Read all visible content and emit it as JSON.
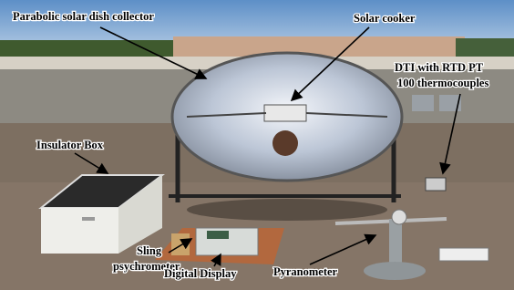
{
  "annotations": [
    {
      "lines": [
        "Parabolic solar dish collector"
      ]
    },
    {
      "lines": [
        "Solar cooker"
      ]
    },
    {
      "lines": [
        "DTI with RTD PT",
        "100 thermocouples"
      ]
    },
    {
      "lines": [
        "Insulator Box"
      ]
    },
    {
      "lines": [
        "Sling",
        "psychrometer"
      ]
    },
    {
      "lines": [
        "Digital Display"
      ]
    },
    {
      "lines": [
        "Pyranometer"
      ]
    }
  ]
}
